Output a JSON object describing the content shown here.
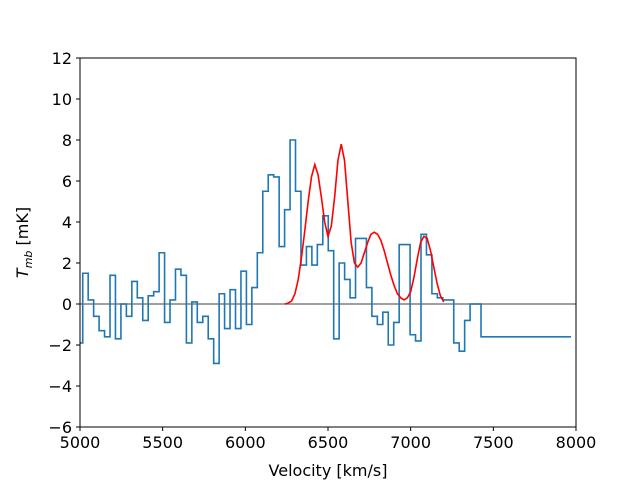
{
  "chart_data": {
    "type": "line",
    "title": "",
    "xlabel": "Velocity [km/s]",
    "ylabel_main": "T",
    "ylabel_sub": "mb",
    "ylabel_unit": " [mK]",
    "xlim": [
      5000,
      8000
    ],
    "ylim": [
      -6,
      12
    ],
    "xticks": [
      5000,
      5500,
      6000,
      6500,
      7000,
      7500,
      8000
    ],
    "yticks": [
      -6,
      -4,
      -2,
      0,
      2,
      4,
      6,
      8,
      10,
      12
    ],
    "grid": false,
    "legend": "none",
    "zero_line": {
      "y": 0,
      "color": "#808080"
    },
    "series": [
      {
        "style": "steps-mid",
        "color": "#1f77b4",
        "x": [
          5000,
          5033,
          5066,
          5099,
          5132,
          5165,
          5198,
          5231,
          5264,
          5297,
          5330,
          5363,
          5396,
          5429,
          5462,
          5495,
          5528,
          5561,
          5594,
          5627,
          5660,
          5693,
          5726,
          5759,
          5792,
          5825,
          5858,
          5891,
          5924,
          5957,
          5990,
          6023,
          6056,
          6089,
          6122,
          6155,
          6188,
          6221,
          6254,
          6287,
          6320,
          6353,
          6386,
          6419,
          6452,
          6485,
          6518,
          6551,
          6584,
          6617,
          6650,
          6683,
          6716,
          6749,
          6782,
          6815,
          6848,
          6881,
          6914,
          6947,
          6980,
          7013,
          7046,
          7079,
          7112,
          7145,
          7178,
          7211,
          7244,
          7277,
          7310,
          7343,
          7376,
          7409,
          7442,
          7475,
          7508,
          7541,
          7574,
          7607,
          7640,
          7673,
          7706,
          7739,
          7772,
          7805,
          7838,
          7871,
          7904,
          7937,
          7970
        ],
        "y": [
          -1.9,
          1.5,
          0.2,
          -0.6,
          -1.3,
          -1.6,
          1.4,
          -1.7,
          0.0,
          -0.6,
          1.1,
          0.3,
          -0.8,
          0.4,
          0.6,
          2.5,
          -0.9,
          0.2,
          1.7,
          1.4,
          -1.9,
          0.1,
          -0.9,
          -0.6,
          -1.7,
          -2.9,
          0.5,
          -1.2,
          0.7,
          -1.2,
          1.6,
          -1.0,
          0.8,
          2.5,
          5.5,
          6.3,
          6.2,
          2.8,
          4.6,
          8.0,
          5.5,
          1.9,
          2.8,
          1.9,
          2.9,
          4.3,
          2.6,
          -1.7,
          2.0,
          1.2,
          0.3,
          3.2,
          3.2,
          0.8,
          -0.6,
          -1.0,
          -0.4,
          -2.0,
          -0.9,
          2.9,
          2.9,
          -1.5,
          -1.8,
          3.4,
          2.4,
          0.5,
          0.3,
          0.2,
          0.2,
          -1.9,
          -2.3,
          -0.8,
          0.0,
          0.0,
          -1.6,
          -1.6,
          -1.6,
          -1.6,
          -1.6,
          -1.6,
          -1.6,
          -1.6,
          -1.6,
          -1.6,
          -1.6,
          -1.6,
          -1.6,
          -1.6,
          -1.6,
          -1.6,
          -1.6
        ]
      },
      {
        "style": "line",
        "color": "#ff0000",
        "x": [
          6240,
          6260,
          6280,
          6300,
          6320,
          6340,
          6360,
          6380,
          6400,
          6420,
          6440,
          6460,
          6480,
          6500,
          6520,
          6540,
          6560,
          6580,
          6600,
          6620,
          6640,
          6660,
          6680,
          6700,
          6720,
          6740,
          6760,
          6780,
          6800,
          6820,
          6840,
          6860,
          6880,
          6900,
          6920,
          6940,
          6960,
          6980,
          7000,
          7020,
          7040,
          7060,
          7080,
          7100,
          7120,
          7140,
          7160,
          7180,
          7200
        ],
        "y": [
          0.0,
          0.05,
          0.15,
          0.5,
          1.2,
          2.3,
          3.6,
          5.0,
          6.2,
          6.8,
          6.3,
          5.2,
          4.0,
          3.3,
          3.8,
          5.2,
          7.0,
          7.8,
          7.0,
          5.0,
          3.0,
          2.0,
          1.8,
          2.0,
          2.5,
          3.0,
          3.4,
          3.5,
          3.4,
          3.1,
          2.6,
          2.0,
          1.4,
          0.9,
          0.5,
          0.3,
          0.2,
          0.3,
          0.6,
          1.3,
          2.2,
          3.0,
          3.3,
          3.2,
          2.6,
          1.8,
          1.0,
          0.4,
          0.1
        ]
      }
    ]
  }
}
